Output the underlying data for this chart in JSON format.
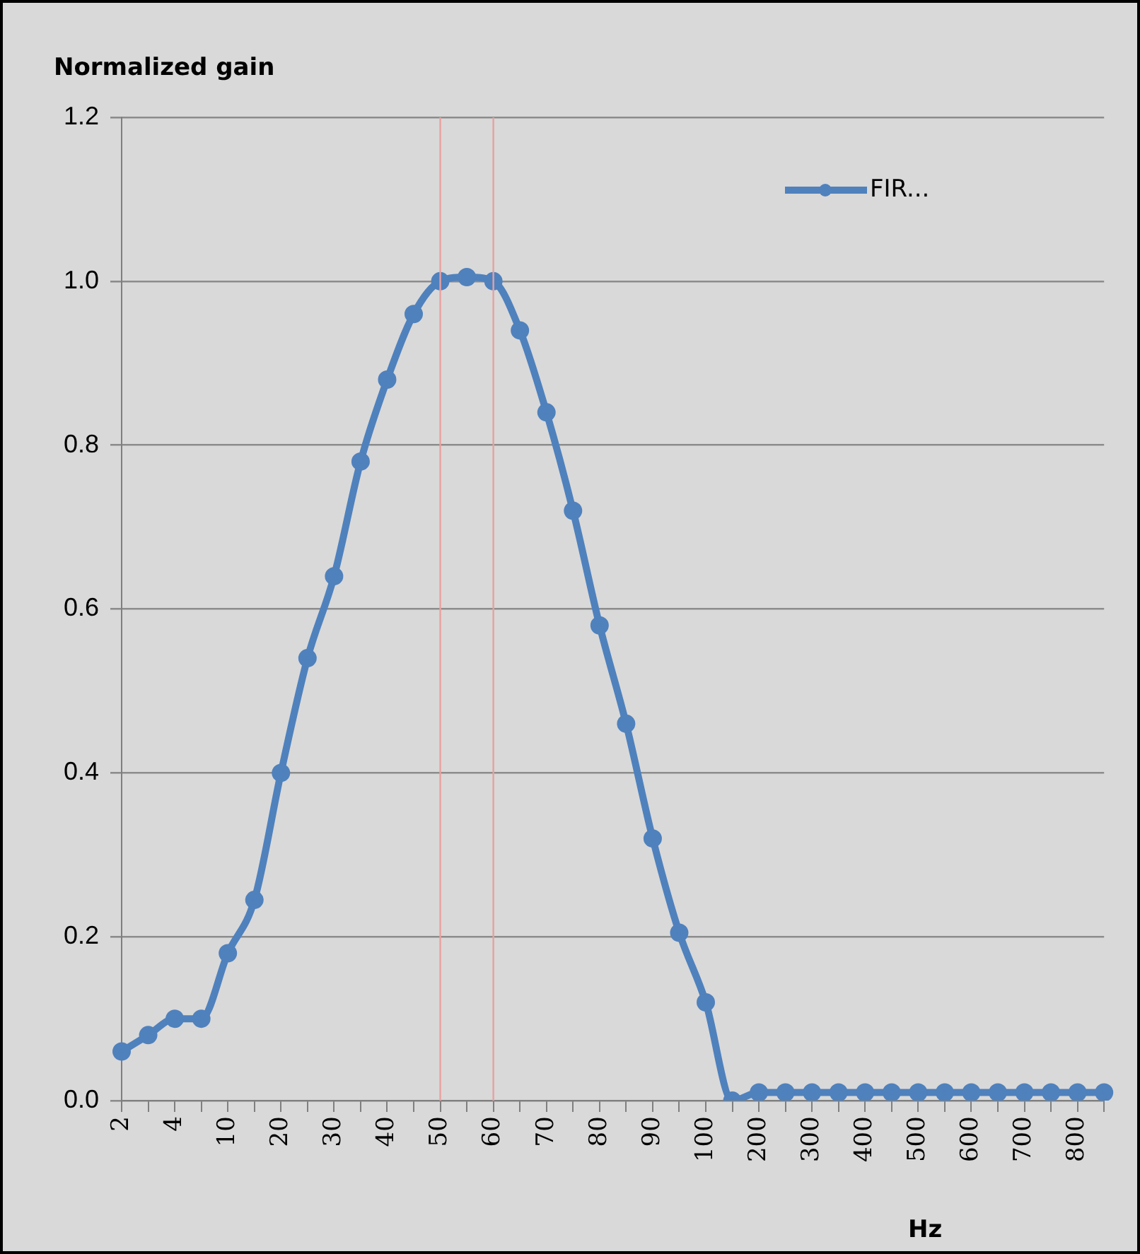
{
  "chart_data": {
    "type": "line",
    "ylabel": "Normalized gain",
    "xlabel": "Hz",
    "categories": [
      "2",
      null,
      "4",
      null,
      "10",
      null,
      "20",
      null,
      "30",
      null,
      "40",
      null,
      "50",
      null,
      "60",
      null,
      "70",
      null,
      "80",
      null,
      "90",
      null,
      "100",
      null,
      "200",
      null,
      "300",
      null,
      "400",
      null,
      "500",
      null,
      "600",
      null,
      "700",
      null,
      "800",
      null
    ],
    "series": [
      {
        "name": "FIR...",
        "color": "#4f81bd",
        "values": [
          0.06,
          0.08,
          0.1,
          0.1,
          0.18,
          0.245,
          0.4,
          0.54,
          0.64,
          0.78,
          0.88,
          0.96,
          1.0,
          1.005,
          1.0,
          0.94,
          0.84,
          0.72,
          0.58,
          0.46,
          0.32,
          0.205,
          0.12,
          0.0,
          0.01,
          0.01,
          0.01,
          0.01,
          0.01,
          0.01,
          0.01,
          0.01,
          0.01,
          0.01,
          0.01,
          0.01,
          0.01,
          0.01
        ]
      }
    ],
    "ylim": [
      0,
      1.2
    ],
    "yticks": [
      {
        "value": 0,
        "label": "0.0"
      },
      {
        "value": 0.2,
        "label": "0.2"
      },
      {
        "value": 0.4,
        "label": "0.4"
      },
      {
        "value": 0.6,
        "label": "0.6"
      },
      {
        "value": 0.8,
        "label": "0.8"
      },
      {
        "value": 1.0,
        "label": "1.0"
      },
      {
        "value": 1.2,
        "label": "1.2"
      }
    ],
    "ref_lines": [
      {
        "axis": "x",
        "value": "50",
        "color": "#e8a0a0"
      },
      {
        "axis": "x",
        "value": "60",
        "color": "#e8a0a0"
      }
    ],
    "grid": "y",
    "legend": "top right",
    "marker": "circle",
    "line_style": "solid"
  }
}
